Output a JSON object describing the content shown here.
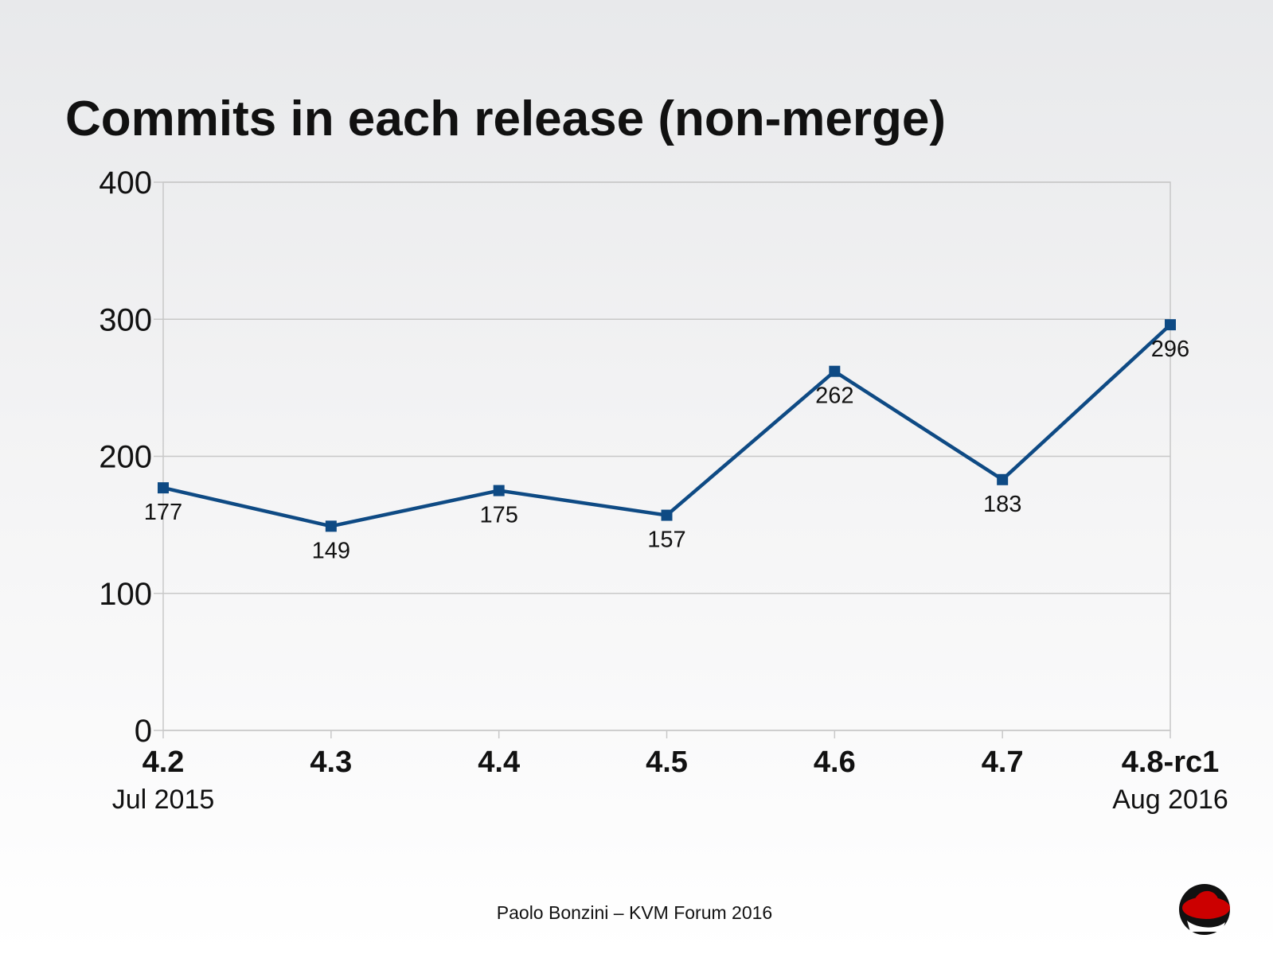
{
  "chart_data": {
    "type": "line",
    "title": "Commits in each release (non-merge)",
    "categories": [
      "4.2",
      "4.3",
      "4.4",
      "4.5",
      "4.6",
      "4.7",
      "4.8-rc1"
    ],
    "category_sublabels": [
      "Jul 2015",
      "",
      "",
      "",
      "",
      "",
      "Aug 2016"
    ],
    "values": [
      177,
      149,
      175,
      157,
      262,
      183,
      296
    ],
    "data_labels": [
      "177",
      "149",
      "175",
      "157",
      "262",
      "183",
      "296"
    ],
    "ylim": [
      0,
      400
    ],
    "yticks": [
      "0",
      "100",
      "200",
      "300",
      "400"
    ],
    "grid": true,
    "legend": "none",
    "line_color": "#0e4a84",
    "xlabel": "",
    "ylabel": ""
  },
  "footer": "Paolo Bonzini – KVM Forum 2016",
  "logo": {
    "name": "red-hat-shadowman-logo",
    "color": "#cc0000"
  }
}
